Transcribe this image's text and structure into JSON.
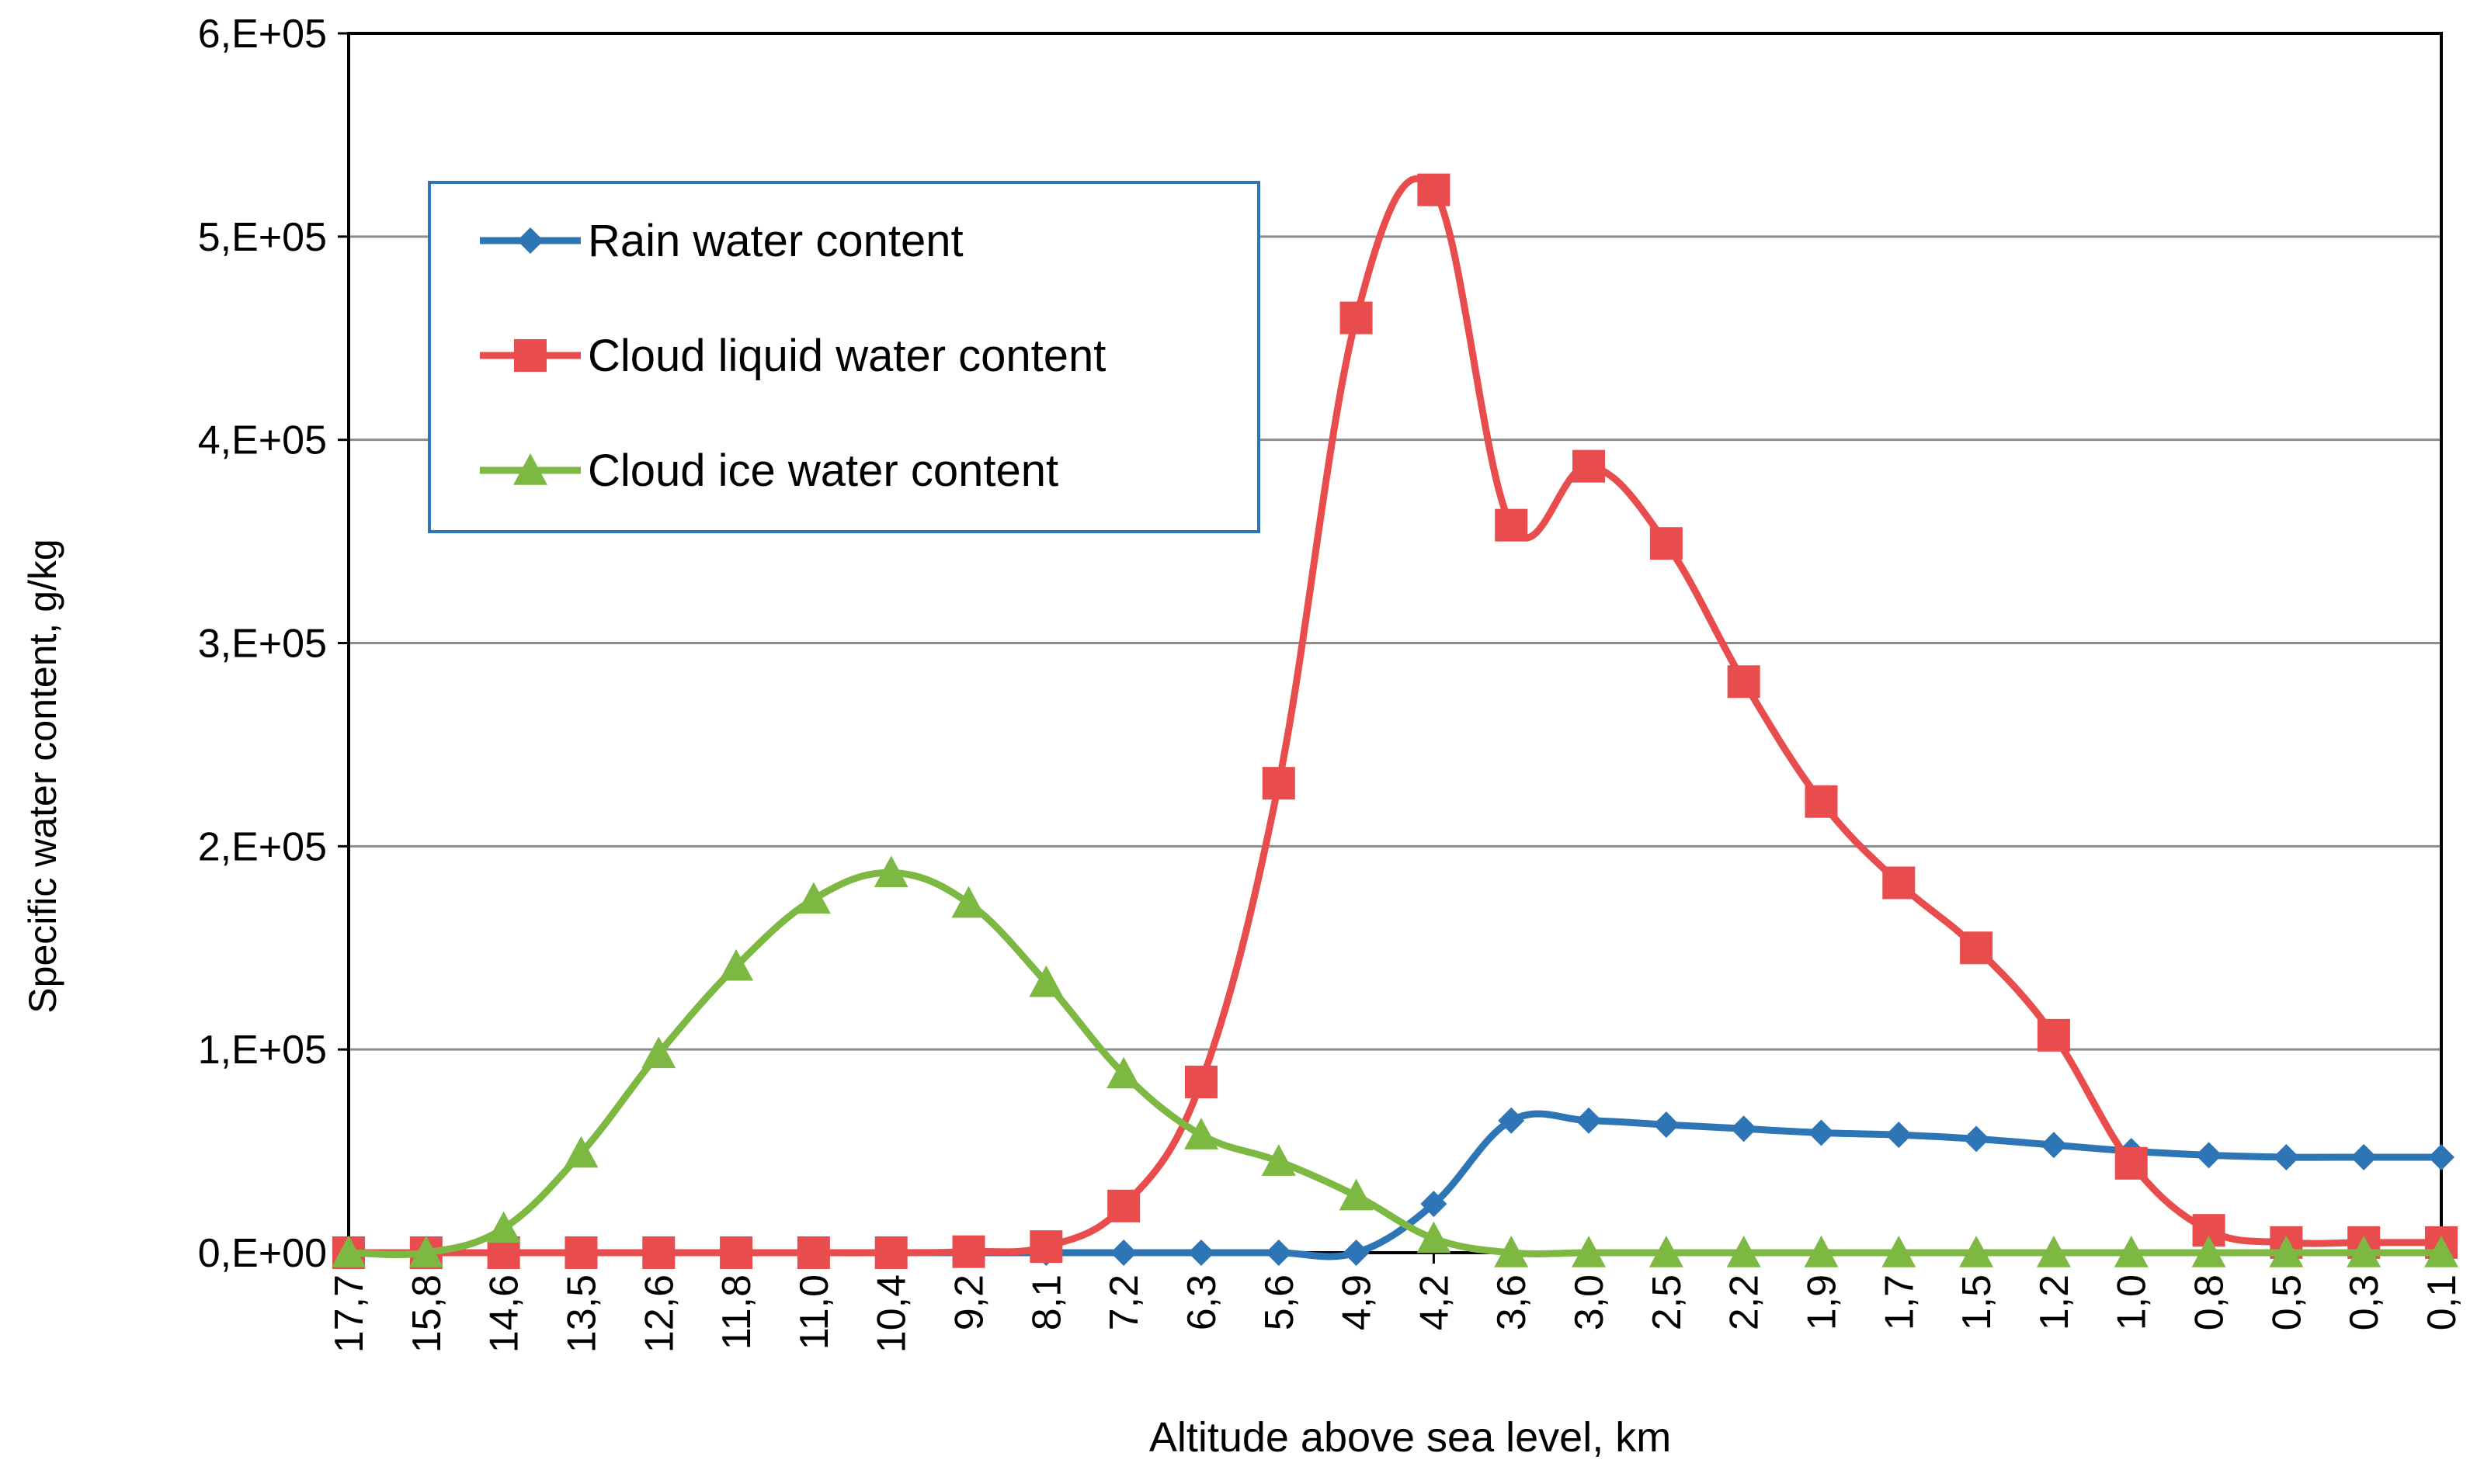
{
  "chart_data": {
    "type": "line",
    "title": "",
    "xlabel": "Altitude above sea level, km",
    "ylabel": "Specific water content, g/kg",
    "ylim": [
      0,
      600000
    ],
    "yticks": [
      "0,E+00",
      "1,E+05",
      "2,E+05",
      "3,E+05",
      "4,E+05",
      "5,E+05",
      "6,E+05"
    ],
    "ytick_values": [
      0,
      100000,
      200000,
      300000,
      400000,
      500000,
      600000
    ],
    "grid": true,
    "legend_position": "top-left",
    "categories": [
      "17,7",
      "15,8",
      "14,6",
      "13,5",
      "12,6",
      "11,8",
      "11,0",
      "10,4",
      "9,2",
      "8,1",
      "7,2",
      "6,3",
      "5,6",
      "4,9",
      "4,2",
      "3,6",
      "3,0",
      "2,5",
      "2,2",
      "1,9",
      "1,7",
      "1,5",
      "1,2",
      "1,0",
      "0,8",
      "0,5",
      "0,3",
      "0,1"
    ],
    "series": [
      {
        "name": "Rain water content",
        "color": "#2E75B6",
        "marker": "diamond",
        "values": [
          0,
          0,
          0,
          0,
          0,
          0,
          0,
          0,
          0,
          0,
          0,
          0,
          0,
          0,
          24000,
          65000,
          65000,
          63000,
          61000,
          59000,
          58000,
          56000,
          53000,
          50000,
          48000,
          47000,
          47000,
          47000
        ]
      },
      {
        "name": "Cloud liquid water content",
        "color": "#E84C4C",
        "marker": "square",
        "values": [
          0,
          0,
          0,
          0,
          0,
          0,
          0,
          0,
          500,
          3000,
          23000,
          84000,
          231000,
          460000,
          523000,
          358000,
          387000,
          349000,
          281000,
          222000,
          182000,
          150000,
          107000,
          44000,
          11000,
          5000,
          5000,
          5000
        ]
      },
      {
        "name": "Cloud ice water content",
        "color": "#7DB843",
        "marker": "triangle",
        "values": [
          0,
          0,
          12000,
          49000,
          98000,
          141000,
          174000,
          187000,
          172000,
          133000,
          88000,
          58000,
          45000,
          28000,
          7000,
          0,
          0,
          0,
          0,
          0,
          0,
          0,
          0,
          0,
          0,
          0,
          0,
          0
        ]
      }
    ]
  }
}
